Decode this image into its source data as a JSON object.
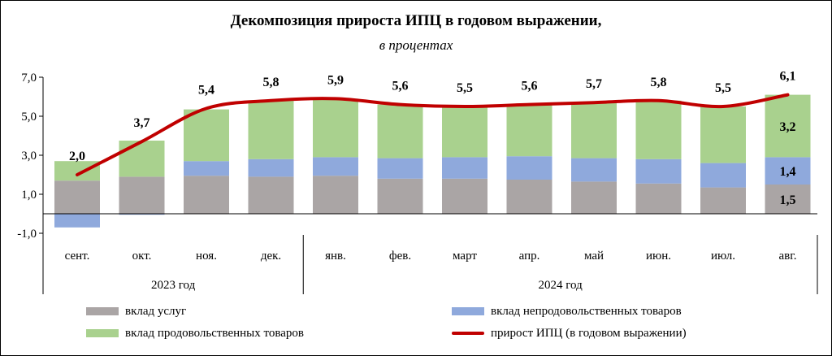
{
  "title": "Декомпозиция прироста ИПЦ  в годовом выражении,",
  "subtitle": "в процентах",
  "chart_data": {
    "type": "bar",
    "stacked": true,
    "categories": [
      "сент.",
      "окт.",
      "ноя.",
      "дек.",
      "янв.",
      "фев.",
      "март",
      "апр.",
      "май",
      "июн.",
      "июл.",
      "авг."
    ],
    "year_groups": [
      {
        "label": "2023 год",
        "start": 0,
        "end": 3
      },
      {
        "label": "2024 год",
        "start": 4,
        "end": 11
      }
    ],
    "ylim": [
      -1.0,
      7.0
    ],
    "yticks": [
      -1.0,
      1.0,
      3.0,
      5.0,
      7.0
    ],
    "ytick_labels": [
      "-1,0",
      "1,0",
      "3,0",
      "5,0",
      "7,0"
    ],
    "grid": false,
    "series": [
      {
        "name": "вклад услуг",
        "color": "#aaa5a5",
        "values": [
          1.7,
          1.9,
          1.95,
          1.9,
          1.95,
          1.8,
          1.8,
          1.75,
          1.65,
          1.55,
          1.35,
          1.5
        ]
      },
      {
        "name": "вклад непродовольственных товаров",
        "color": "#8fa9dc",
        "values": [
          -0.7,
          -0.05,
          0.75,
          0.9,
          0.95,
          1.05,
          1.1,
          1.2,
          1.2,
          1.25,
          1.25,
          1.4
        ]
      },
      {
        "name": "вклад продовольственных товаров",
        "color": "#a9d18e",
        "values": [
          1.0,
          1.85,
          2.65,
          3.0,
          3.0,
          2.75,
          2.6,
          2.65,
          2.85,
          3.0,
          2.9,
          3.2
        ]
      }
    ],
    "line": {
      "name": "прирост ИПЦ (в годовом выражении)",
      "color": "#c00000",
      "values": [
        2.0,
        3.7,
        5.4,
        5.8,
        5.9,
        5.6,
        5.5,
        5.6,
        5.7,
        5.8,
        5.5,
        6.1
      ]
    },
    "line_labels": [
      "2,0",
      "3,7",
      "5,4",
      "5,8",
      "5,9",
      "5,6",
      "5,5",
      "5,6",
      "5,7",
      "5,8",
      "5,5",
      "6,1"
    ],
    "segment_labels": [
      {
        "category_index": 11,
        "series_index": 0,
        "text": "1,5"
      },
      {
        "category_index": 11,
        "series_index": 1,
        "text": "1,4"
      },
      {
        "category_index": 11,
        "series_index": 2,
        "text": "3,2"
      }
    ],
    "legend_position": "bottom"
  }
}
